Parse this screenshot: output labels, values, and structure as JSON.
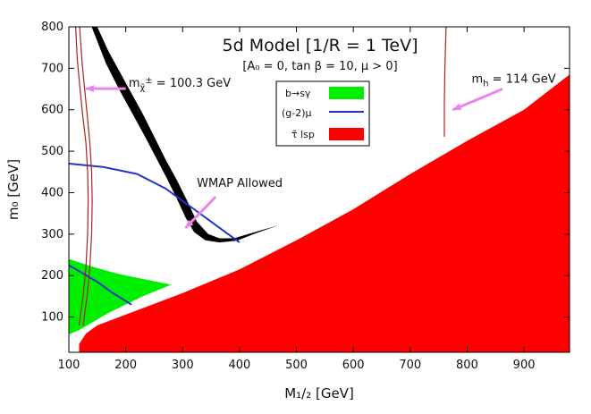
{
  "chart_data": {
    "type": "area",
    "title": "5d Model [1/R = 1 TeV]",
    "subtitle": "[A₀ = 0, tan β = 10, μ > 0]",
    "xlabel": "M₁/₂ [GeV]",
    "ylabel": "m₀ [GeV]",
    "xlim": [
      100,
      980
    ],
    "ylim": [
      15,
      800
    ],
    "xticks": [
      "100",
      "200",
      "300",
      "400",
      "500",
      "600",
      "700",
      "800",
      "900"
    ],
    "yticks": [
      "100",
      "200",
      "300",
      "400",
      "500",
      "600",
      "700",
      "800"
    ],
    "xtick_values": [
      100,
      200,
      300,
      400,
      500,
      600,
      700,
      800,
      900
    ],
    "ytick_values": [
      100,
      200,
      300,
      400,
      500,
      600,
      700,
      800
    ],
    "legend": {
      "position": "top-center",
      "entries": [
        {
          "label": "b→sγ",
          "color": "#00ee00",
          "kind": "fill"
        },
        {
          "label": "(g-2)μ",
          "color": "#2233cc",
          "kind": "line"
        },
        {
          "label": "τ̃ lsp",
          "color": "#ff0000",
          "kind": "fill"
        }
      ]
    },
    "regions": {
      "stau_lsp": {
        "color": "#ff0000",
        "points": [
          [
            118,
            15
          ],
          [
            118,
            35
          ],
          [
            130,
            60
          ],
          [
            150,
            80
          ],
          [
            300,
            158
          ],
          [
            400,
            215
          ],
          [
            500,
            285
          ],
          [
            600,
            360
          ],
          [
            700,
            445
          ],
          [
            800,
            525
          ],
          [
            900,
            600
          ],
          [
            980,
            685
          ],
          [
            980,
            15
          ]
        ]
      },
      "b_to_s_gamma": {
        "color": "#00ee00",
        "points": [
          [
            100,
            15
          ],
          [
            100,
            240
          ],
          [
            145,
            220
          ],
          [
            190,
            203
          ],
          [
            280,
            178
          ],
          [
            230,
            150
          ],
          [
            170,
            110
          ],
          [
            120,
            70
          ],
          [
            100,
            58
          ]
        ]
      },
      "wmap_band_outer": [
        [
          150,
          800
        ],
        [
          170,
          740
        ],
        [
          190,
          690
        ],
        [
          210,
          640
        ],
        [
          230,
          590
        ],
        [
          250,
          535
        ],
        [
          270,
          480
        ],
        [
          290,
          430
        ],
        [
          310,
          375
        ],
        [
          325,
          330
        ],
        [
          345,
          300
        ],
        [
          365,
          290
        ],
        [
          390,
          290
        ],
        [
          420,
          302
        ],
        [
          460,
          318
        ]
      ],
      "wmap_band_inner": [
        [
          470,
          322
        ],
        [
          425,
          300
        ],
        [
          395,
          284
        ],
        [
          365,
          280
        ],
        [
          340,
          285
        ],
        [
          320,
          305
        ],
        [
          305,
          340
        ],
        [
          290,
          385
        ],
        [
          272,
          435
        ],
        [
          252,
          488
        ],
        [
          232,
          540
        ],
        [
          210,
          595
        ],
        [
          188,
          650
        ],
        [
          165,
          712
        ],
        [
          140,
          800
        ]
      ]
    },
    "curves": {
      "g_minus_2_upper": {
        "color": "#2233cc",
        "points": [
          [
            100,
            470
          ],
          [
            160,
            462
          ],
          [
            220,
            445
          ],
          [
            270,
            410
          ],
          [
            320,
            360
          ],
          [
            360,
            320
          ],
          [
            400,
            280
          ]
        ]
      },
      "g_minus_2_lower": {
        "color": "#2233cc",
        "points": [
          [
            100,
            225
          ],
          [
            125,
            205
          ],
          [
            150,
            185
          ],
          [
            175,
            160
          ],
          [
            210,
            130
          ]
        ]
      },
      "chargino_limit": {
        "color": "#aa2222",
        "points": [
          [
            112,
            800
          ],
          [
            115,
            720
          ],
          [
            119,
            660
          ],
          [
            124,
            590
          ],
          [
            130,
            520
          ],
          [
            133,
            450
          ],
          [
            134,
            380
          ],
          [
            133,
            300
          ],
          [
            130,
            220
          ],
          [
            125,
            150
          ],
          [
            118,
            80
          ]
        ]
      },
      "chargino_limit_b": {
        "color": "#aa2222",
        "points": [
          [
            119,
            800
          ],
          [
            123,
            720
          ],
          [
            127,
            660
          ],
          [
            132,
            590
          ],
          [
            137,
            520
          ],
          [
            140,
            450
          ],
          [
            141,
            380
          ],
          [
            140,
            300
          ],
          [
            137,
            220
          ],
          [
            132,
            150
          ],
          [
            125,
            80
          ]
        ]
      },
      "higgs_limit": {
        "color": "#aa2222",
        "points": [
          [
            763,
            800
          ],
          [
            761,
            700
          ],
          [
            760,
            620
          ],
          [
            760,
            535
          ]
        ]
      }
    },
    "annotations": [
      {
        "id": "chargino",
        "prefix": "m",
        "sub": "χ̃",
        "sup": "±",
        "suffix": " = 100.3 GeV",
        "text_at": [
          205,
          655
        ],
        "arrow_from": [
          200,
          651
        ],
        "arrow_to": [
          130,
          651
        ]
      },
      {
        "id": "higgs",
        "prefix": "m",
        "sub": "h",
        "sup": "",
        "suffix": " = 114 GeV",
        "text_at": [
          808,
          665
        ],
        "arrow_from": [
          862,
          650
        ],
        "arrow_to": [
          775,
          600
        ]
      },
      {
        "id": "wmap",
        "prefix": "WMAP Allowed",
        "sub": "",
        "sup": "",
        "suffix": "",
        "text_at": [
          325,
          414
        ],
        "arrow_from": [
          358,
          390
        ],
        "arrow_to": [
          305,
          315
        ]
      }
    ]
  }
}
